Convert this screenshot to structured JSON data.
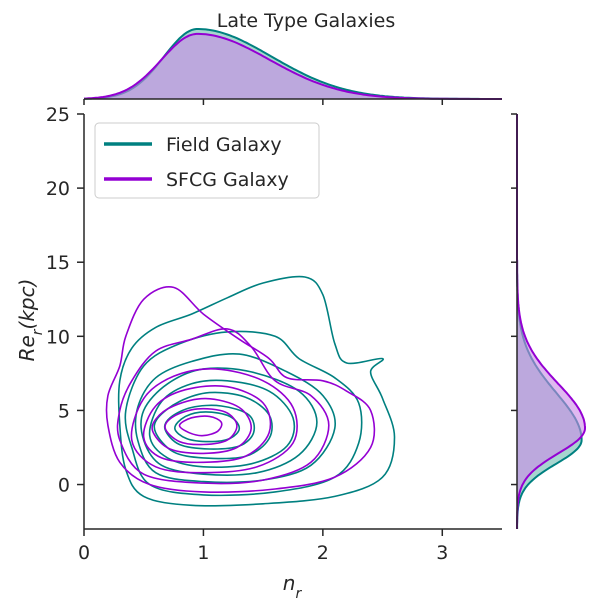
{
  "chart_data": {
    "type": "contour",
    "title": "Late Type Galaxies",
    "xlabel": "n",
    "xlabel_sub": "r",
    "ylabel_main": "Re",
    "ylabel_sub": "r",
    "ylabel_suffix": "(kpc)",
    "xlim": [
      0,
      3.5
    ],
    "ylim": [
      -3,
      25
    ],
    "xticks": [
      0,
      1,
      2,
      3
    ],
    "yticks": [
      0,
      5,
      10,
      15,
      20,
      25
    ],
    "grid": false,
    "legend_position": "upper-left",
    "series": [
      {
        "name": "Field Galaxy",
        "color": "#008080",
        "fill": "#5fb3a8",
        "kde_center": [
          1.05,
          3.6
        ],
        "x_marginal_peak": 0.95,
        "y_marginal_peak": 3.0,
        "contours": [
          [
            [
              0.35,
              1.0
            ],
            [
              0.5,
              -0.8
            ],
            [
              0.9,
              -1.4
            ],
            [
              1.5,
              -1.3
            ],
            [
              2.1,
              -0.8
            ],
            [
              2.5,
              0.5
            ],
            [
              2.6,
              3.2
            ],
            [
              2.5,
              5.8
            ],
            [
              2.4,
              7.6
            ],
            [
              2.5,
              8.5
            ],
            [
              2.2,
              8.2
            ],
            [
              2.1,
              9.5
            ],
            [
              2.0,
              12.8
            ],
            [
              1.85,
              14.0
            ],
            [
              1.5,
              13.6
            ],
            [
              1.2,
              12.6
            ],
            [
              0.9,
              11.5
            ],
            [
              0.6,
              10.6
            ],
            [
              0.4,
              9.2
            ],
            [
              0.3,
              7.0
            ],
            [
              0.3,
              4.0
            ],
            [
              0.35,
              1.0
            ]
          ],
          [
            [
              0.4,
              2.5
            ],
            [
              0.55,
              0.0
            ],
            [
              1.0,
              -0.7
            ],
            [
              1.6,
              -0.5
            ],
            [
              2.1,
              0.5
            ],
            [
              2.3,
              2.8
            ],
            [
              2.3,
              5.5
            ],
            [
              2.1,
              7.2
            ],
            [
              1.8,
              8.5
            ],
            [
              1.6,
              10.0
            ],
            [
              1.2,
              10.3
            ],
            [
              0.8,
              9.5
            ],
            [
              0.5,
              8.0
            ],
            [
              0.35,
              5.0
            ],
            [
              0.4,
              2.5
            ]
          ],
          [
            [
              0.45,
              3.0
            ],
            [
              0.6,
              0.8
            ],
            [
              1.0,
              0.2
            ],
            [
              1.5,
              0.3
            ],
            [
              1.9,
              1.3
            ],
            [
              2.1,
              3.8
            ],
            [
              2.0,
              6.0
            ],
            [
              1.7,
              7.6
            ],
            [
              1.3,
              8.8
            ],
            [
              0.9,
              8.3
            ],
            [
              0.6,
              7.2
            ],
            [
              0.45,
              5.2
            ],
            [
              0.45,
              3.0
            ]
          ],
          [
            [
              0.5,
              3.0
            ],
            [
              0.65,
              1.3
            ],
            [
              1.0,
              0.7
            ],
            [
              1.45,
              0.8
            ],
            [
              1.8,
              2.0
            ],
            [
              1.95,
              4.2
            ],
            [
              1.8,
              6.3
            ],
            [
              1.4,
              7.6
            ],
            [
              1.0,
              7.8
            ],
            [
              0.7,
              6.8
            ],
            [
              0.5,
              5.0
            ],
            [
              0.5,
              3.0
            ]
          ],
          [
            [
              0.55,
              3.3
            ],
            [
              0.7,
              1.8
            ],
            [
              1.0,
              1.2
            ],
            [
              1.4,
              1.4
            ],
            [
              1.7,
              2.6
            ],
            [
              1.75,
              4.5
            ],
            [
              1.55,
              6.3
            ],
            [
              1.2,
              7.0
            ],
            [
              0.9,
              6.8
            ],
            [
              0.65,
              5.6
            ],
            [
              0.55,
              3.3
            ]
          ],
          [
            [
              0.6,
              3.5
            ],
            [
              0.75,
              2.2
            ],
            [
              1.0,
              1.8
            ],
            [
              1.35,
              1.9
            ],
            [
              1.55,
              3.1
            ],
            [
              1.55,
              4.7
            ],
            [
              1.35,
              5.9
            ],
            [
              1.05,
              6.2
            ],
            [
              0.8,
              5.6
            ],
            [
              0.62,
              4.5
            ],
            [
              0.6,
              3.5
            ]
          ],
          [
            [
              0.68,
              3.7
            ],
            [
              0.8,
              2.7
            ],
            [
              1.05,
              2.4
            ],
            [
              1.3,
              2.6
            ],
            [
              1.42,
              3.5
            ],
            [
              1.38,
              4.7
            ],
            [
              1.15,
              5.3
            ],
            [
              0.9,
              5.2
            ],
            [
              0.72,
              4.5
            ],
            [
              0.68,
              3.7
            ]
          ],
          [
            [
              0.76,
              3.8
            ],
            [
              0.86,
              3.1
            ],
            [
              1.05,
              2.9
            ],
            [
              1.22,
              3.1
            ],
            [
              1.3,
              3.8
            ],
            [
              1.22,
              4.6
            ],
            [
              1.02,
              4.9
            ],
            [
              0.85,
              4.6
            ],
            [
              0.76,
              3.8
            ]
          ]
        ]
      },
      {
        "name": "SFCG Galaxy",
        "color": "#9400d3",
        "fill": "#c98ae6",
        "kde_center": [
          0.95,
          4.0
        ],
        "x_marginal_peak": 0.95,
        "y_marginal_peak": 3.8,
        "contours": [
          [
            [
              0.2,
              4.0
            ],
            [
              0.3,
              1.5
            ],
            [
              0.55,
              0.0
            ],
            [
              1.0,
              -0.5
            ],
            [
              1.6,
              -0.3
            ],
            [
              2.1,
              0.5
            ],
            [
              2.4,
              2.5
            ],
            [
              2.4,
              5.0
            ],
            [
              2.2,
              6.3
            ],
            [
              2.0,
              7.0
            ],
            [
              1.7,
              7.2
            ],
            [
              1.55,
              8.5
            ],
            [
              1.3,
              9.8
            ],
            [
              1.0,
              11.5
            ],
            [
              0.75,
              13.3
            ],
            [
              0.5,
              12.5
            ],
            [
              0.35,
              10.0
            ],
            [
              0.3,
              8.0
            ],
            [
              0.2,
              6.0
            ],
            [
              0.2,
              4.0
            ]
          ],
          [
            [
              0.3,
              3.0
            ],
            [
              0.5,
              0.7
            ],
            [
              1.0,
              0.1
            ],
            [
              1.5,
              0.3
            ],
            [
              1.9,
              1.5
            ],
            [
              2.05,
              4.0
            ],
            [
              1.9,
              6.0
            ],
            [
              1.6,
              7.0
            ],
            [
              1.4,
              9.3
            ],
            [
              1.2,
              10.5
            ],
            [
              0.9,
              9.8
            ],
            [
              0.6,
              9.0
            ],
            [
              0.4,
              7.0
            ],
            [
              0.3,
              5.0
            ],
            [
              0.3,
              3.0
            ]
          ],
          [
            [
              0.4,
              3.0
            ],
            [
              0.6,
              1.2
            ],
            [
              1.0,
              0.8
            ],
            [
              1.45,
              1.2
            ],
            [
              1.75,
              2.8
            ],
            [
              1.75,
              5.2
            ],
            [
              1.5,
              7.0
            ],
            [
              1.1,
              7.8
            ],
            [
              0.75,
              7.3
            ],
            [
              0.5,
              5.8
            ],
            [
              0.4,
              3.0
            ]
          ],
          [
            [
              0.5,
              3.2
            ],
            [
              0.65,
              1.8
            ],
            [
              1.0,
              1.5
            ],
            [
              1.35,
              1.9
            ],
            [
              1.55,
              3.5
            ],
            [
              1.5,
              5.5
            ],
            [
              1.2,
              6.6
            ],
            [
              0.85,
              6.4
            ],
            [
              0.6,
              5.3
            ],
            [
              0.5,
              3.2
            ]
          ],
          [
            [
              0.58,
              3.5
            ],
            [
              0.72,
              2.4
            ],
            [
              1.0,
              2.1
            ],
            [
              1.28,
              2.5
            ],
            [
              1.4,
              3.8
            ],
            [
              1.3,
              5.2
            ],
            [
              1.02,
              5.8
            ],
            [
              0.75,
              5.3
            ],
            [
              0.6,
              4.4
            ],
            [
              0.58,
              3.5
            ]
          ],
          [
            [
              0.68,
              3.8
            ],
            [
              0.8,
              2.9
            ],
            [
              1.0,
              2.7
            ],
            [
              1.2,
              3.0
            ],
            [
              1.28,
              4.0
            ],
            [
              1.18,
              4.9
            ],
            [
              0.95,
              5.1
            ],
            [
              0.75,
              4.6
            ],
            [
              0.68,
              3.8
            ]
          ],
          [
            [
              0.8,
              4.0
            ],
            [
              0.88,
              3.5
            ],
            [
              1.0,
              3.3
            ],
            [
              1.12,
              3.6
            ],
            [
              1.15,
              4.2
            ],
            [
              1.05,
              4.6
            ],
            [
              0.9,
              4.5
            ],
            [
              0.8,
              4.0
            ]
          ]
        ]
      }
    ]
  }
}
